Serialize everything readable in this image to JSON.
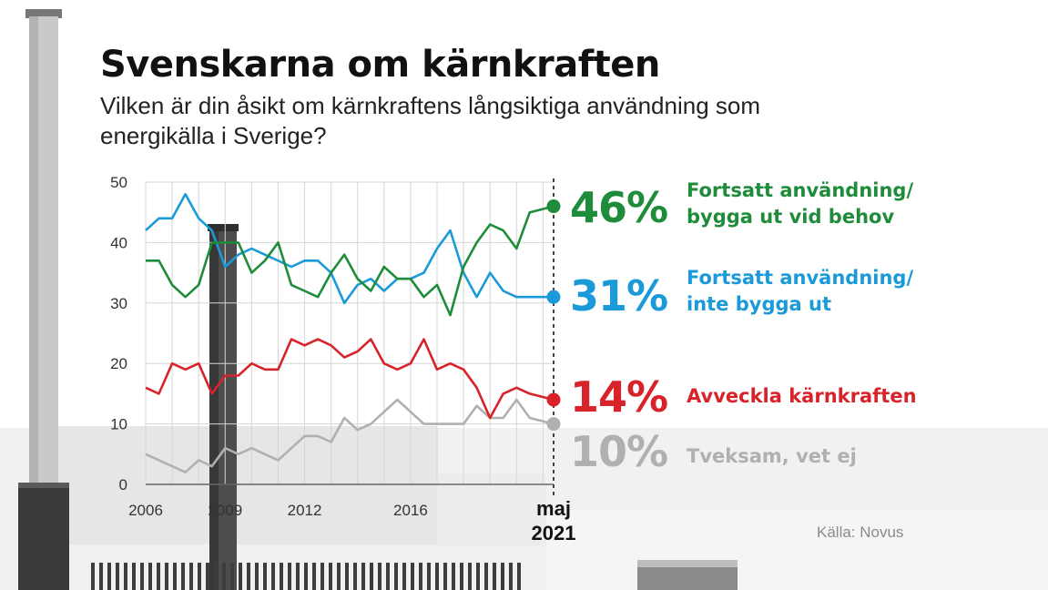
{
  "title": "Svenskarna om kärnkraften",
  "subtitle": "Vilken är din åsikt om kärnkraftens långsiktiga användning som energikälla i Sverige?",
  "source": "Källa: Novus",
  "colors": {
    "green": "#1e8c3a",
    "blue": "#1a9ad9",
    "red": "#d8232a",
    "gray": "#b0b0b0"
  },
  "chart_data": {
    "type": "line",
    "xlabel": "",
    "ylabel": "",
    "ylim": [
      0,
      50
    ],
    "yticks": [
      0,
      10,
      20,
      30,
      40,
      50
    ],
    "xlim": [
      2006,
      2021.4
    ],
    "xticks": [
      {
        "x": 2006,
        "label": "2006"
      },
      {
        "x": 2009,
        "label": "2009"
      },
      {
        "x": 2012,
        "label": "2012"
      },
      {
        "x": 2016,
        "label": "2016"
      }
    ],
    "last_label_top": "maj",
    "last_label_bottom": "2021",
    "grid": true,
    "x": [
      2006,
      2006.5,
      2007,
      2007.5,
      2008,
      2008.5,
      2009,
      2009.5,
      2010,
      2010.5,
      2011,
      2011.5,
      2012,
      2012.5,
      2013,
      2013.5,
      2014,
      2014.5,
      2015,
      2015.5,
      2016,
      2016.5,
      2017,
      2017.5,
      2018,
      2018.5,
      2019,
      2019.5,
      2020,
      2020.5,
      2021.4
    ],
    "series": [
      {
        "color_key": "green",
        "values": [
          37,
          37,
          33,
          31,
          33,
          40,
          40,
          40,
          35,
          37,
          40,
          33,
          32,
          31,
          35,
          38,
          34,
          32,
          36,
          34,
          34,
          31,
          33,
          28,
          36,
          40,
          43,
          42,
          39,
          45,
          46
        ],
        "end_value": "46%",
        "name": "Fortsatt användning/\nbygga ut vid behov"
      },
      {
        "color_key": "blue",
        "values": [
          42,
          44,
          44,
          48,
          44,
          42,
          36,
          38,
          39,
          38,
          37,
          36,
          37,
          37,
          35,
          30,
          33,
          34,
          32,
          34,
          34,
          35,
          39,
          42,
          35,
          31,
          35,
          32,
          31,
          31,
          31
        ],
        "end_value": "31%",
        "name": "Fortsatt användning/\ninte bygga ut"
      },
      {
        "color_key": "red",
        "values": [
          16,
          15,
          20,
          19,
          20,
          15,
          18,
          18,
          20,
          19,
          19,
          24,
          23,
          24,
          23,
          21,
          22,
          24,
          20,
          19,
          20,
          24,
          19,
          20,
          19,
          16,
          11,
          15,
          16,
          15,
          14
        ],
        "end_value": "14%",
        "name": "Avveckla kärnkraften"
      },
      {
        "color_key": "gray",
        "values": [
          5,
          4,
          3,
          2,
          4,
          3,
          6,
          5,
          6,
          5,
          4,
          6,
          8,
          8,
          7,
          11,
          9,
          10,
          12,
          14,
          12,
          10,
          10,
          10,
          10,
          13,
          11,
          11,
          14,
          11,
          10
        ],
        "end_value": "10%",
        "name": "Tveksam, vet ej"
      }
    ]
  }
}
